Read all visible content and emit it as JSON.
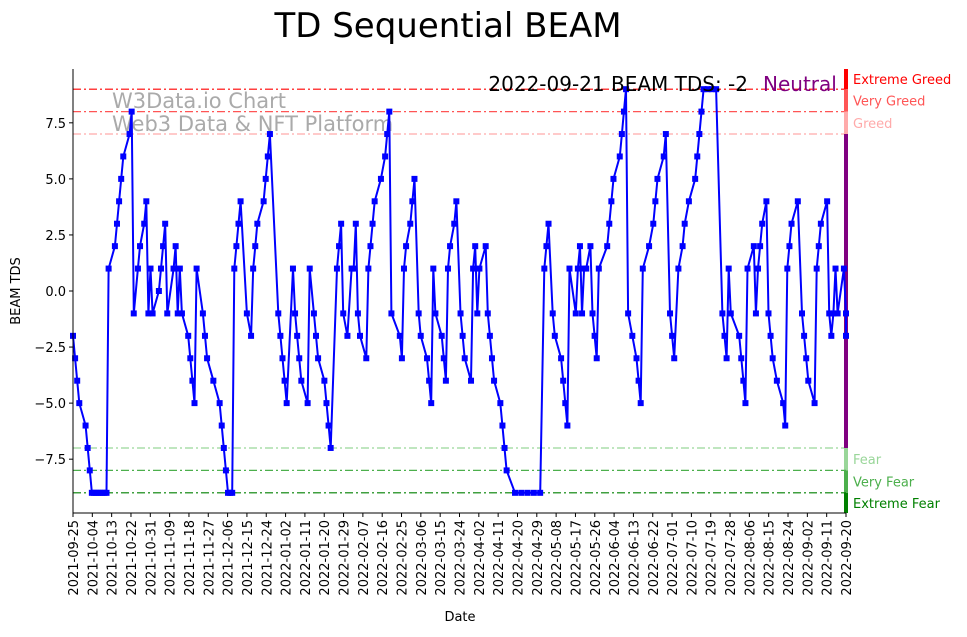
{
  "chart_data": {
    "type": "line",
    "title": "TD Sequential BEAM",
    "xlabel": "Date",
    "ylabel": "BEAM TDS",
    "ylim": [
      -9.9,
      9.9
    ],
    "xlim_days": [
      0,
      369
    ],
    "yticks": [
      -7.5,
      -5.0,
      -2.5,
      0.0,
      2.5,
      5.0,
      7.5
    ],
    "ytick_labels": [
      "−7.5",
      "−5.0",
      "−2.5",
      "0.0",
      "2.5",
      "5.0",
      "7.5"
    ],
    "xtick_labels": [
      "2021-09-25",
      "2021-10-04",
      "2021-10-13",
      "2021-10-22",
      "2021-10-31",
      "2021-11-09",
      "2021-11-18",
      "2021-11-27",
      "2021-12-06",
      "2021-12-15",
      "2021-12-24",
      "2022-01-02",
      "2022-01-11",
      "2022-01-20",
      "2022-01-29",
      "2022-02-07",
      "2022-02-16",
      "2022-02-25",
      "2022-03-06",
      "2022-03-15",
      "2022-03-24",
      "2022-04-02",
      "2022-04-11",
      "2022-04-20",
      "2022-04-29",
      "2022-05-08",
      "2022-05-17",
      "2022-05-26",
      "2022-06-04",
      "2022-06-13",
      "2022-06-22",
      "2022-07-01",
      "2022-07-10",
      "2022-07-19",
      "2022-07-28",
      "2022-08-06",
      "2022-08-15",
      "2022-08-24",
      "2022-09-02",
      "2022-09-11",
      "2022-09-20"
    ],
    "series": [
      {
        "name": "BEAM TDS",
        "color": "#0000ff",
        "points": [
          [
            0,
            -2
          ],
          [
            1,
            -3
          ],
          [
            2,
            -4
          ],
          [
            3,
            -5
          ],
          [
            6,
            -6
          ],
          [
            7,
            -7
          ],
          [
            8,
            -8
          ],
          [
            9,
            -9
          ],
          [
            10,
            -9
          ],
          [
            11,
            -9
          ],
          [
            12,
            -9
          ],
          [
            13,
            -9
          ],
          [
            14,
            -9
          ],
          [
            15,
            -9
          ],
          [
            16,
            -9
          ],
          [
            17,
            1
          ],
          [
            20,
            2
          ],
          [
            21,
            3
          ],
          [
            22,
            4
          ],
          [
            23,
            5
          ],
          [
            24,
            6
          ],
          [
            27,
            7
          ],
          [
            28,
            8
          ],
          [
            29,
            -1
          ],
          [
            31,
            1
          ],
          [
            32,
            2
          ],
          [
            34,
            3
          ],
          [
            35,
            4
          ],
          [
            36,
            -1
          ],
          [
            37,
            1
          ],
          [
            38,
            -1
          ],
          [
            41,
            0
          ],
          [
            42,
            1
          ],
          [
            43,
            2
          ],
          [
            44,
            3
          ],
          [
            45,
            -1
          ],
          [
            48,
            1
          ],
          [
            49,
            2
          ],
          [
            50,
            -1
          ],
          [
            51,
            1
          ],
          [
            52,
            -1
          ],
          [
            55,
            -2
          ],
          [
            56,
            -3
          ],
          [
            57,
            -4
          ],
          [
            58,
            -5
          ],
          [
            59,
            1
          ],
          [
            62,
            -1
          ],
          [
            63,
            -2
          ],
          [
            64,
            -3
          ],
          [
            67,
            -4
          ],
          [
            70,
            -5
          ],
          [
            71,
            -6
          ],
          [
            72,
            -7
          ],
          [
            73,
            -8
          ],
          [
            74,
            -9
          ],
          [
            75,
            -9
          ],
          [
            76,
            -9
          ],
          [
            77,
            1
          ],
          [
            78,
            2
          ],
          [
            79,
            3
          ],
          [
            80,
            4
          ],
          [
            83,
            -1
          ],
          [
            85,
            -2
          ],
          [
            86,
            1
          ],
          [
            87,
            2
          ],
          [
            88,
            3
          ],
          [
            91,
            4
          ],
          [
            92,
            5
          ],
          [
            93,
            6
          ],
          [
            94,
            7
          ],
          [
            98,
            -1
          ],
          [
            99,
            -2
          ],
          [
            100,
            -3
          ],
          [
            101,
            -4
          ],
          [
            102,
            -5
          ],
          [
            105,
            1
          ],
          [
            106,
            -1
          ],
          [
            107,
            -2
          ],
          [
            108,
            -3
          ],
          [
            109,
            -4
          ],
          [
            112,
            -5
          ],
          [
            113,
            1
          ],
          [
            115,
            -1
          ],
          [
            116,
            -2
          ],
          [
            117,
            -3
          ],
          [
            120,
            -4
          ],
          [
            121,
            -5
          ],
          [
            122,
            -6
          ],
          [
            123,
            -7
          ],
          [
            126,
            1
          ],
          [
            127,
            2
          ],
          [
            128,
            3
          ],
          [
            129,
            -1
          ],
          [
            131,
            -2
          ],
          [
            133,
            1
          ],
          [
            134,
            1
          ],
          [
            135,
            3
          ],
          [
            136,
            -1
          ],
          [
            137,
            -2
          ],
          [
            140,
            -3
          ],
          [
            141,
            1
          ],
          [
            142,
            2
          ],
          [
            143,
            3
          ],
          [
            144,
            4
          ],
          [
            147,
            5
          ],
          [
            149,
            6
          ],
          [
            150,
            7
          ],
          [
            151,
            8
          ],
          [
            152,
            -1
          ],
          [
            156,
            -2
          ],
          [
            157,
            -3
          ],
          [
            158,
            1
          ],
          [
            159,
            2
          ],
          [
            161,
            3
          ],
          [
            162,
            4
          ],
          [
            163,
            5
          ],
          [
            165,
            -1
          ],
          [
            166,
            -2
          ],
          [
            169,
            -3
          ],
          [
            170,
            -4
          ],
          [
            171,
            -5
          ],
          [
            172,
            1
          ],
          [
            173,
            -1
          ],
          [
            176,
            -2
          ],
          [
            177,
            -3
          ],
          [
            178,
            -4
          ],
          [
            179,
            1
          ],
          [
            180,
            2
          ],
          [
            182,
            3
          ],
          [
            183,
            4
          ],
          [
            185,
            -1
          ],
          [
            186,
            -2
          ],
          [
            187,
            -3
          ],
          [
            190,
            -4
          ],
          [
            191,
            1
          ],
          [
            192,
            2
          ],
          [
            193,
            -1
          ],
          [
            194,
            1
          ],
          [
            197,
            2
          ],
          [
            198,
            -1
          ],
          [
            199,
            -2
          ],
          [
            200,
            -3
          ],
          [
            201,
            -4
          ],
          [
            204,
            -5
          ],
          [
            205,
            -6
          ],
          [
            206,
            -7
          ],
          [
            207,
            -8
          ],
          [
            211,
            -9
          ],
          [
            214,
            -9
          ],
          [
            217,
            -9
          ],
          [
            220,
            -9
          ],
          [
            223,
            -9
          ],
          [
            225,
            1
          ],
          [
            226,
            2
          ],
          [
            227,
            3
          ],
          [
            229,
            -1
          ],
          [
            230,
            -2
          ],
          [
            233,
            -3
          ],
          [
            234,
            -4
          ],
          [
            235,
            -5
          ],
          [
            236,
            -6
          ],
          [
            237,
            1
          ],
          [
            240,
            -1
          ],
          [
            241,
            1
          ],
          [
            242,
            2
          ],
          [
            243,
            -1
          ],
          [
            244,
            1
          ],
          [
            245,
            1
          ],
          [
            247,
            2
          ],
          [
            248,
            -1
          ],
          [
            249,
            -2
          ],
          [
            250,
            -3
          ],
          [
            251,
            1
          ],
          [
            255,
            2
          ],
          [
            256,
            3
          ],
          [
            257,
            4
          ],
          [
            258,
            5
          ],
          [
            261,
            6
          ],
          [
            262,
            7
          ],
          [
            263,
            8
          ],
          [
            264,
            9
          ],
          [
            265,
            -1
          ],
          [
            267,
            -2
          ],
          [
            269,
            -3
          ],
          [
            270,
            -4
          ],
          [
            271,
            -5
          ],
          [
            272,
            1
          ],
          [
            275,
            2
          ],
          [
            277,
            3
          ],
          [
            278,
            4
          ],
          [
            279,
            5
          ],
          [
            282,
            6
          ],
          [
            283,
            7
          ],
          [
            285,
            -1
          ],
          [
            286,
            -2
          ],
          [
            287,
            -3
          ],
          [
            289,
            1
          ],
          [
            291,
            2
          ],
          [
            292,
            3
          ],
          [
            294,
            4
          ],
          [
            297,
            5
          ],
          [
            298,
            6
          ],
          [
            299,
            7
          ],
          [
            300,
            8
          ],
          [
            301,
            9
          ],
          [
            303,
            9
          ],
          [
            305,
            9
          ],
          [
            307,
            9
          ],
          [
            310,
            -1
          ],
          [
            311,
            -2
          ],
          [
            312,
            -3
          ],
          [
            313,
            1
          ],
          [
            314,
            -1
          ],
          [
            318,
            -2
          ],
          [
            319,
            -3
          ],
          [
            320,
            -4
          ],
          [
            321,
            -5
          ],
          [
            322,
            1
          ],
          [
            325,
            2
          ],
          [
            326,
            -1
          ],
          [
            327,
            1
          ],
          [
            328,
            2
          ],
          [
            329,
            3
          ],
          [
            331,
            4
          ],
          [
            332,
            -1
          ],
          [
            333,
            -2
          ],
          [
            334,
            -3
          ],
          [
            336,
            -4
          ],
          [
            339,
            -5
          ],
          [
            340,
            -6
          ],
          [
            341,
            1
          ],
          [
            342,
            2
          ],
          [
            343,
            3
          ],
          [
            346,
            4
          ],
          [
            348,
            -1
          ],
          [
            349,
            -2
          ],
          [
            350,
            -3
          ],
          [
            351,
            -4
          ],
          [
            354,
            -5
          ],
          [
            355,
            1
          ],
          [
            356,
            2
          ],
          [
            357,
            3
          ],
          [
            360,
            4
          ],
          [
            361,
            -1
          ],
          [
            362,
            -2
          ],
          [
            363,
            -1
          ],
          [
            364,
            1
          ],
          [
            365,
            -1
          ],
          [
            368,
            1
          ],
          [
            369,
            -1
          ],
          [
            369,
            -2
          ]
        ]
      }
    ],
    "levels": [
      {
        "value": 9,
        "label": "Extreme Greed",
        "color": "#ff0000",
        "band": [
          9,
          9.9
        ]
      },
      {
        "value": 8,
        "label": "Very Greed",
        "color": "#ff5555",
        "band": [
          8,
          9
        ]
      },
      {
        "value": 7,
        "label": "Greed",
        "color": "#ffaaaa",
        "band": [
          7,
          8
        ]
      },
      {
        "value": -7,
        "label": "Fear",
        "color": "#99d699",
        "band": [
          -8,
          -7
        ]
      },
      {
        "value": -8,
        "label": "Very Fear",
        "color": "#4caf4c",
        "band": [
          -9,
          -8
        ]
      },
      {
        "value": -9,
        "label": "Extreme Fear",
        "color": "#008000",
        "band": [
          -9.9,
          -9
        ]
      }
    ],
    "neutral_band": {
      "range": [
        -7,
        7
      ],
      "color": "#800080"
    },
    "annotation": {
      "text": "2022-09-21 BEAM TDS: -2",
      "status": "Neutral",
      "status_color": "#800080"
    },
    "watermark": {
      "line1": "W3Data.io Chart",
      "line2": "Web3 Data & NFT Platform"
    },
    "legend": "none",
    "grid": false
  }
}
